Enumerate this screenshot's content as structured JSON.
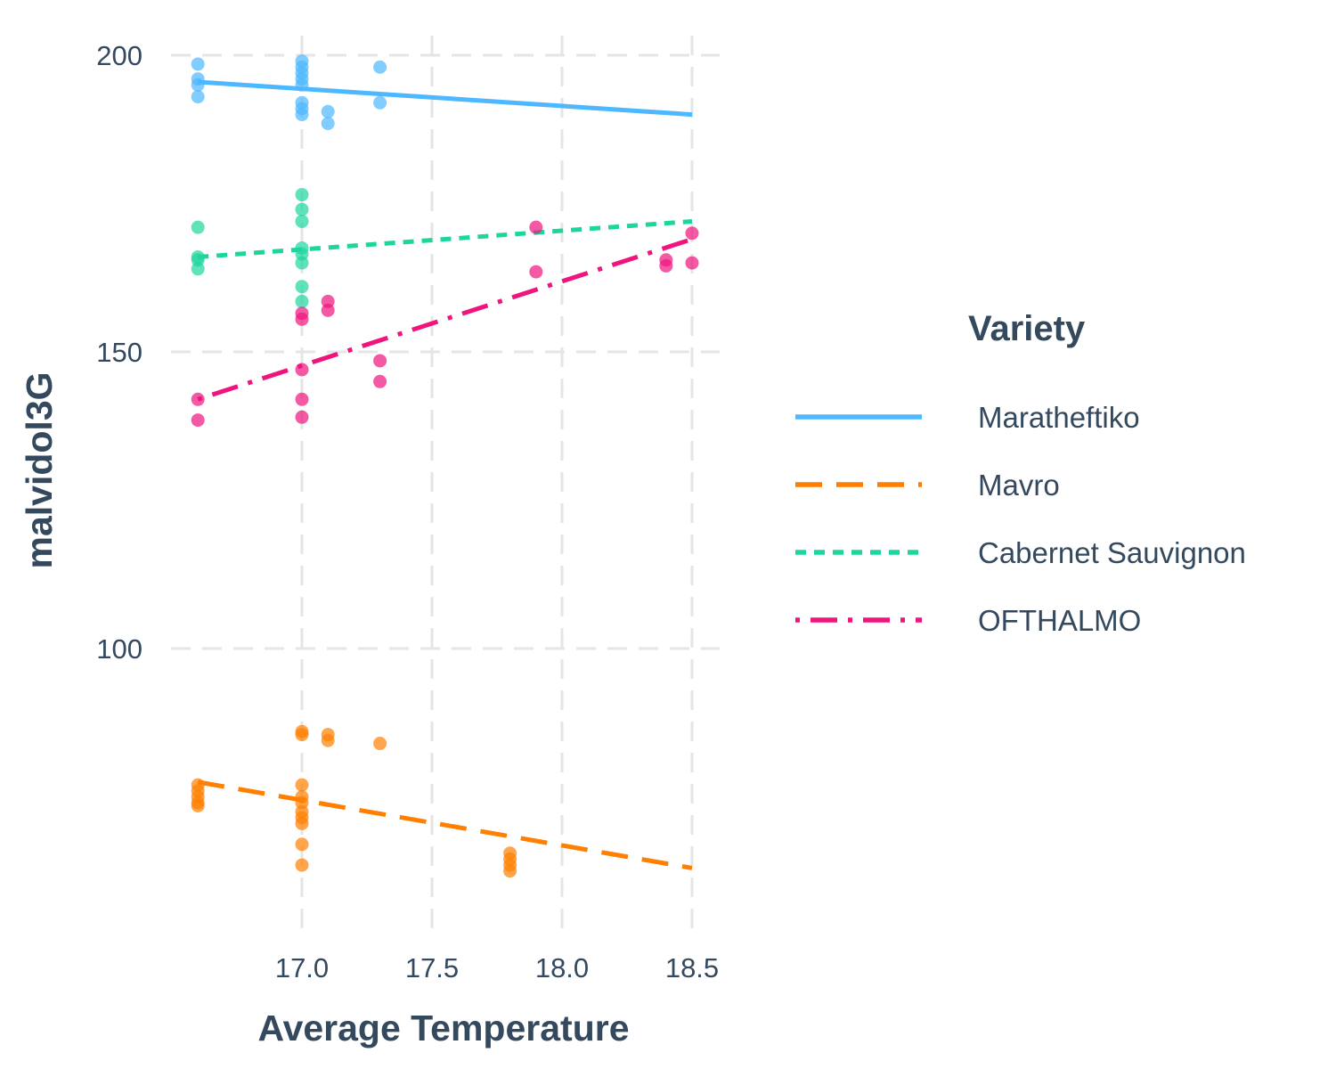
{
  "chart_data": {
    "type": "scatter",
    "title": "",
    "xlabel": "Average Temperature",
    "ylabel": "malvidol3G",
    "xlim": [
      16.5,
      18.6
    ],
    "ylim": [
      52,
      205
    ],
    "x_ticks": [
      17.0,
      17.5,
      18.0,
      18.5
    ],
    "x_tick_labels": [
      "17.0",
      "17.5",
      "18.0",
      "18.5"
    ],
    "y_ticks": [
      100,
      150,
      200
    ],
    "y_tick_labels": [
      "100",
      "150",
      "200"
    ],
    "grid": true,
    "legend": {
      "title": "Variety",
      "position": "right"
    },
    "series": [
      {
        "name": "Maratheftiko",
        "color": "#4db8ff",
        "line_style": "solid",
        "fit": [
          [
            16.6,
            195.5
          ],
          [
            18.5,
            190.0
          ]
        ],
        "points": [
          [
            16.6,
            198.5
          ],
          [
            16.6,
            196.0
          ],
          [
            16.6,
            195.0
          ],
          [
            16.6,
            193.0
          ],
          [
            17.0,
            199.0
          ],
          [
            17.0,
            198.0
          ],
          [
            17.0,
            197.0
          ],
          [
            17.0,
            196.0
          ],
          [
            17.0,
            195.0
          ],
          [
            17.0,
            192.0
          ],
          [
            17.0,
            191.0
          ],
          [
            17.0,
            190.0
          ],
          [
            17.1,
            190.5
          ],
          [
            17.1,
            188.5
          ],
          [
            17.3,
            198.0
          ],
          [
            17.3,
            192.0
          ]
        ]
      },
      {
        "name": "Mavro",
        "color": "#ff7f00",
        "line_style": "dashed",
        "fit": [
          [
            16.6,
            77.5
          ],
          [
            18.5,
            63.0
          ]
        ],
        "points": [
          [
            16.6,
            77.0
          ],
          [
            16.6,
            76.0
          ],
          [
            16.6,
            75.0
          ],
          [
            16.6,
            74.0
          ],
          [
            16.6,
            73.5
          ],
          [
            17.0,
            86.0
          ],
          [
            17.0,
            85.5
          ],
          [
            17.0,
            77.0
          ],
          [
            17.0,
            75.0
          ],
          [
            17.0,
            74.0
          ],
          [
            17.0,
            72.5
          ],
          [
            17.0,
            71.5
          ],
          [
            17.0,
            70.5
          ],
          [
            17.0,
            67.0
          ],
          [
            17.0,
            63.5
          ],
          [
            17.1,
            85.5
          ],
          [
            17.1,
            84.5
          ],
          [
            17.3,
            84.0
          ],
          [
            17.8,
            65.5
          ],
          [
            17.8,
            64.5
          ],
          [
            17.8,
            63.5
          ],
          [
            17.8,
            62.5
          ]
        ]
      },
      {
        "name": "Cabernet Sauvignon",
        "color": "#1dd69e",
        "line_style": "dotted",
        "fit": [
          [
            16.6,
            166.0
          ],
          [
            18.5,
            172.0
          ]
        ],
        "points": [
          [
            16.6,
            171.0
          ],
          [
            16.6,
            166.0
          ],
          [
            16.6,
            165.5
          ],
          [
            16.6,
            164.0
          ],
          [
            17.0,
            176.5
          ],
          [
            17.0,
            174.0
          ],
          [
            17.0,
            172.0
          ],
          [
            17.0,
            167.5
          ],
          [
            17.0,
            166.5
          ],
          [
            17.0,
            165.0
          ],
          [
            17.0,
            161.0
          ],
          [
            17.0,
            158.5
          ]
        ]
      },
      {
        "name": "OFTHALMO",
        "color": "#f0147d",
        "line_style": "dotdash",
        "fit": [
          [
            16.6,
            142.0
          ],
          [
            18.5,
            169.0
          ]
        ],
        "points": [
          [
            16.6,
            142.0
          ],
          [
            16.6,
            138.5
          ],
          [
            17.0,
            156.5
          ],
          [
            17.0,
            155.5
          ],
          [
            17.0,
            147.0
          ],
          [
            17.0,
            142.0
          ],
          [
            17.0,
            139.0
          ],
          [
            17.1,
            158.5
          ],
          [
            17.1,
            157.0
          ],
          [
            17.3,
            148.5
          ],
          [
            17.3,
            145.0
          ],
          [
            17.9,
            171.0
          ],
          [
            17.9,
            163.5
          ],
          [
            18.4,
            165.5
          ],
          [
            18.4,
            164.5
          ],
          [
            18.5,
            170.0
          ],
          [
            18.5,
            165.0
          ]
        ]
      }
    ]
  }
}
